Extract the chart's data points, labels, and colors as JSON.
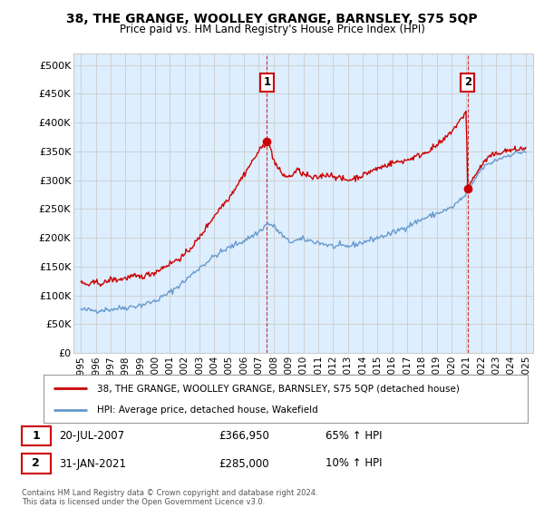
{
  "title": "38, THE GRANGE, WOOLLEY GRANGE, BARNSLEY, S75 5QP",
  "subtitle": "Price paid vs. HM Land Registry's House Price Index (HPI)",
  "red_label": "38, THE GRANGE, WOOLLEY GRANGE, BARNSLEY, S75 5QP (detached house)",
  "blue_label": "HPI: Average price, detached house, Wakefield",
  "annotation1_label": "1",
  "annotation1_date": "20-JUL-2007",
  "annotation1_price": "£366,950",
  "annotation1_pct": "65% ↑ HPI",
  "annotation2_label": "2",
  "annotation2_date": "31-JAN-2021",
  "annotation2_price": "£285,000",
  "annotation2_pct": "10% ↑ HPI",
  "footer": "Contains HM Land Registry data © Crown copyright and database right 2024.\nThis data is licensed under the Open Government Licence v3.0.",
  "xlim_start": 1994.5,
  "xlim_end": 2025.5,
  "ylim_bottom": 0,
  "ylim_top": 520000,
  "point1_x": 2007.55,
  "point1_y": 366950,
  "point2_x": 2021.08,
  "point2_y": 285000,
  "red_color": "#cc0000",
  "blue_color": "#6699cc",
  "bg_fill_color": "#ddeeff",
  "background_color": "#ffffff",
  "grid_color": "#cccccc",
  "yticks": [
    0,
    50000,
    100000,
    150000,
    200000,
    250000,
    300000,
    350000,
    400000,
    450000,
    500000
  ],
  "ytick_labels": [
    "£0",
    "£50K",
    "£100K",
    "£150K",
    "£200K",
    "£250K",
    "£300K",
    "£350K",
    "£400K",
    "£450K",
    "£500K"
  ]
}
